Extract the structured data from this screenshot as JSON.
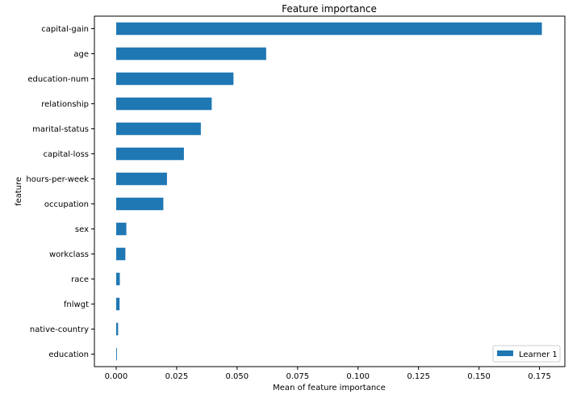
{
  "chart_data": {
    "type": "bar",
    "orientation": "horizontal",
    "title": "Feature importance",
    "xlabel": "Mean of feature importance",
    "ylabel": "feature",
    "categories": [
      "capital-gain",
      "age",
      "education-num",
      "relationship",
      "marital-status",
      "capital-loss",
      "hours-per-week",
      "occupation",
      "sex",
      "workclass",
      "race",
      "fnlwgt",
      "native-country",
      "education"
    ],
    "series": [
      {
        "name": "Learner 1",
        "values": [
          0.176,
          0.062,
          0.0485,
          0.0395,
          0.035,
          0.028,
          0.021,
          0.0195,
          0.0042,
          0.0038,
          0.0015,
          0.0014,
          0.0008,
          0.0003
        ],
        "color": "#1f77b4"
      }
    ],
    "xlim": [
      -0.009,
      0.1855
    ],
    "xticks": [
      0.0,
      0.025,
      0.05,
      0.075,
      0.1,
      0.125,
      0.15,
      0.175
    ],
    "xtick_labels": [
      "0.000",
      "0.025",
      "0.050",
      "0.075",
      "0.100",
      "0.125",
      "0.150",
      "0.175"
    ],
    "grid": false,
    "legend_position": "bottom-right"
  }
}
